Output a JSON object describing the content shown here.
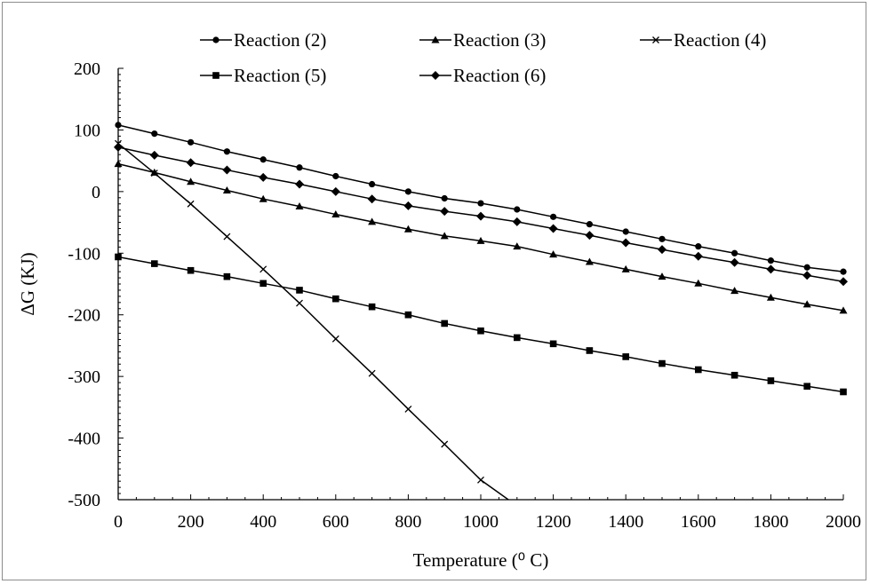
{
  "chart_data": {
    "type": "line",
    "xlabel": "Temperature (⁰ C)",
    "ylabel": "ΔG (KJ)",
    "xlim": [
      0,
      2000
    ],
    "ylim": [
      -500,
      200
    ],
    "xticks": [
      0,
      200,
      400,
      600,
      800,
      1000,
      1200,
      1400,
      1600,
      1800,
      2000
    ],
    "yticks": [
      200,
      100,
      0,
      -100,
      -200,
      -300,
      -400,
      -500
    ],
    "grid": false,
    "legend_position": "top",
    "line_color": "#000000",
    "x": [
      0,
      100,
      200,
      300,
      400,
      500,
      600,
      700,
      800,
      900,
      1000,
      1100,
      1200,
      1300,
      1400,
      1500,
      1600,
      1700,
      1800,
      1900,
      2000
    ],
    "series": [
      {
        "name": "Reaction (2)",
        "marker": "circle",
        "values": [
          108,
          94,
          80,
          65,
          52,
          39,
          25,
          12,
          0,
          -11,
          -19,
          -29,
          -41,
          -53,
          -65,
          -77,
          -89,
          -100,
          -112,
          -123,
          -130
        ]
      },
      {
        "name": "Reaction (3)",
        "marker": "triangle",
        "values": [
          45,
          31,
          16,
          2,
          -12,
          -24,
          -37,
          -49,
          -61,
          -72,
          -80,
          -89,
          -102,
          -114,
          -126,
          -138,
          -149,
          -161,
          -172,
          -183,
          -193
        ]
      },
      {
        "name": "Reaction (4)",
        "marker": "x",
        "values": [
          78,
          30,
          -20,
          -73,
          -126,
          -181,
          -239,
          -295,
          -353,
          -410,
          -468,
          -510,
          null,
          null,
          null,
          null,
          null,
          null,
          null,
          null,
          null
        ]
      },
      {
        "name": "Reaction (5)",
        "marker": "square",
        "values": [
          -106,
          -117,
          -128,
          -138,
          -149,
          -160,
          -174,
          -187,
          -200,
          -214,
          -226,
          -237,
          -247,
          -258,
          -268,
          -279,
          -289,
          -298,
          -307,
          -316,
          -325
        ]
      },
      {
        "name": "Reaction (6)",
        "marker": "diamond",
        "values": [
          72,
          59,
          47,
          35,
          23,
          12,
          0,
          -12,
          -23,
          -32,
          -40,
          -49,
          -60,
          -71,
          -83,
          -94,
          -105,
          -115,
          -126,
          -136,
          -146
        ]
      }
    ]
  }
}
